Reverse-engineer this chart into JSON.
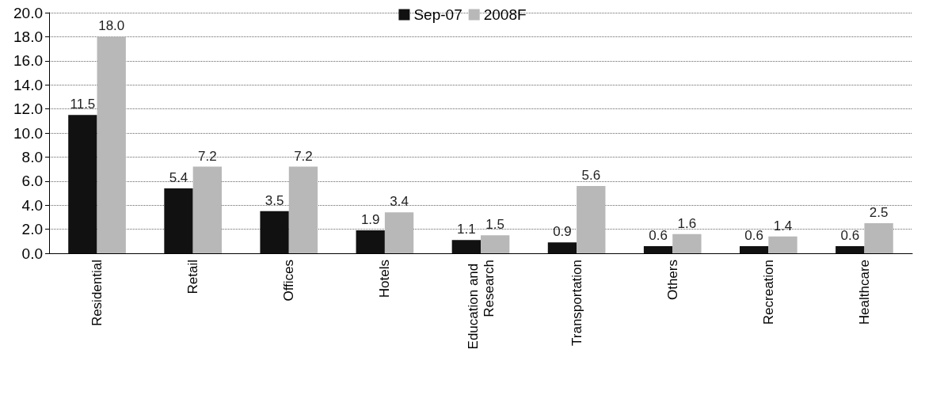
{
  "chart_data": {
    "type": "bar",
    "categories": [
      "Residential",
      "Retail",
      "Offices",
      "Hotels",
      "Education and Research",
      "Transportation",
      "Others",
      "Recreation",
      "Healthcare"
    ],
    "series": [
      {
        "name": "Sep-07",
        "color": "#111111",
        "values": [
          11.5,
          5.4,
          3.5,
          1.9,
          1.1,
          0.9,
          0.6,
          0.6,
          0.6
        ],
        "value_labels": [
          "11.5",
          "5.4",
          "3.5",
          "1.9",
          "1.1",
          "0.9",
          "0.6",
          "0.6",
          "0.6"
        ]
      },
      {
        "name": "2008F",
        "color": "#b8b8b8",
        "values": [
          18.0,
          7.2,
          7.2,
          3.4,
          1.5,
          5.6,
          1.6,
          1.4,
          2.5
        ],
        "value_labels": [
          "18.0",
          "7.2",
          "7.2",
          "3.4",
          "1.5",
          "5.6",
          "1.6",
          "1.4",
          "2.5"
        ]
      }
    ],
    "ylim": [
      0,
      20
    ],
    "yticks": [
      {
        "value": 0,
        "label": "0.0"
      },
      {
        "value": 2,
        "label": "2.0"
      },
      {
        "value": 4,
        "label": "4.0"
      },
      {
        "value": 6,
        "label": "6.0"
      },
      {
        "value": 8,
        "label": "8.0"
      },
      {
        "value": 10,
        "label": "10.0"
      },
      {
        "value": 12,
        "label": "12.0"
      },
      {
        "value": 14,
        "label": "14.0"
      },
      {
        "value": 16,
        "label": "16.0"
      },
      {
        "value": 18,
        "label": "18.0"
      },
      {
        "value": 20,
        "label": "20.0"
      }
    ],
    "grid": "y",
    "legend": "top"
  }
}
